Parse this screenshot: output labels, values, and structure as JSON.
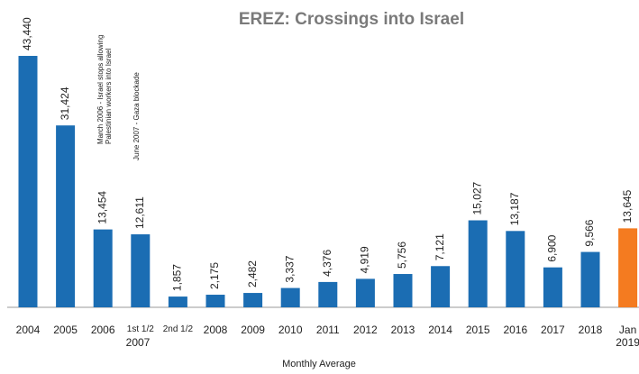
{
  "chart_data": {
    "type": "bar",
    "title": "EREZ: Crossings into Israel",
    "x_label": "Monthly Average",
    "categories": [
      "2004",
      "2005",
      "2006",
      "1st 1/2",
      "2nd 1/2",
      "2008",
      "2009",
      "2010",
      "2011",
      "2012",
      "2013",
      "2014",
      "2015",
      "2016",
      "2017",
      "2018",
      "Jan 2019"
    ],
    "group_label": "2007",
    "values": [
      43440,
      31424,
      13454,
      12611,
      1857,
      2175,
      2482,
      3337,
      4376,
      4919,
      5756,
      7121,
      15027,
      13187,
      6900,
      9566,
      13645
    ],
    "value_labels": [
      "43,440",
      "31,424",
      "13,454",
      "12,611",
      "1,857",
      "2,175",
      "2,482",
      "3,337",
      "4,376",
      "4,919",
      "5,756",
      "7,121",
      "15,027",
      "13,187",
      "6,900",
      "9,566",
      "13,645"
    ],
    "colors": [
      "#1b6db3",
      "#1b6db3",
      "#1b6db3",
      "#1b6db3",
      "#1b6db3",
      "#1b6db3",
      "#1b6db3",
      "#1b6db3",
      "#1b6db3",
      "#1b6db3",
      "#1b6db3",
      "#1b6db3",
      "#1b6db3",
      "#1b6db3",
      "#1b6db3",
      "#1b6db3",
      "#f47b20"
    ],
    "ylim": [
      0,
      45000
    ],
    "annotations": [
      "March 2006 - Israel stops allowing Palestinian workers into Israel",
      "June 2007 - Gaza blockade"
    ]
  }
}
